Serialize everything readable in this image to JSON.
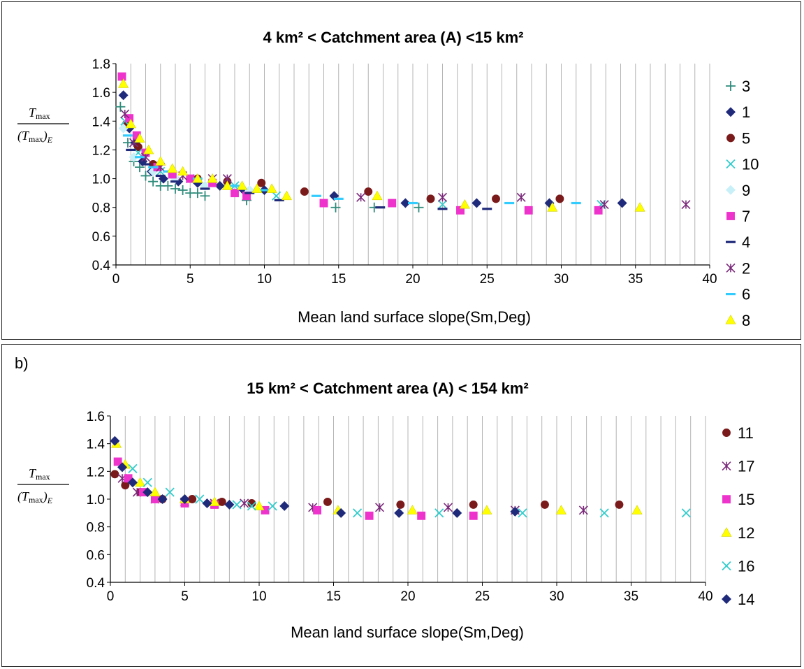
{
  "chart_data": [
    {
      "type": "scatter",
      "title": "4 km² < Catchment area (A) <15 km²",
      "xlabel": "Mean land surface slope(Sm,Deg)",
      "ylabel": "Tmax / (Tmax)E",
      "ylabel_num": "T",
      "ylabel_num_sub": "max",
      "ylabel_den_open": "(T",
      "ylabel_den_sub": "max",
      "ylabel_den_close": ")",
      "ylabel_den_sub2": "E",
      "xlim": [
        0,
        40
      ],
      "ylim": [
        0.4,
        1.8
      ],
      "xticks": [
        "0",
        "5",
        "10",
        "15",
        "20",
        "25",
        "30",
        "35",
        "40"
      ],
      "yticks": [
        "0.4",
        "0.6",
        "0.8",
        "1.0",
        "1.2",
        "1.4",
        "1.6",
        "1.8"
      ],
      "grid": "vertical",
      "legend_position": "right",
      "series": [
        {
          "name": "3",
          "marker": "plus",
          "color": "#2E8B7A",
          "points": [
            [
              0.3,
              1.5
            ],
            [
              0.8,
              1.25
            ],
            [
              1.2,
              1.12
            ],
            [
              1.6,
              1.08
            ],
            [
              2.0,
              1.02
            ],
            [
              2.5,
              0.98
            ],
            [
              3.0,
              0.95
            ],
            [
              3.5,
              0.95
            ],
            [
              4.0,
              0.93
            ],
            [
              4.5,
              0.92
            ],
            [
              5.0,
              0.9
            ],
            [
              5.5,
              0.9
            ],
            [
              6.0,
              0.88
            ],
            [
              8.8,
              0.85
            ],
            [
              14.8,
              0.8
            ],
            [
              17.4,
              0.8
            ],
            [
              20.4,
              0.8
            ]
          ]
        },
        {
          "name": "1",
          "marker": "diamond",
          "color": "#1F2A7A",
          "points": [
            [
              0.5,
              1.58
            ],
            [
              0.9,
              1.35
            ],
            [
              1.3,
              1.25
            ],
            [
              1.8,
              1.12
            ],
            [
              2.4,
              1.05
            ],
            [
              3.2,
              1.0
            ],
            [
              4.2,
              0.98
            ],
            [
              5.5,
              0.97
            ],
            [
              7.0,
              0.95
            ],
            [
              8.5,
              0.93
            ],
            [
              10.0,
              0.92
            ],
            [
              14.7,
              0.88
            ],
            [
              19.5,
              0.83
            ],
            [
              24.3,
              0.83
            ],
            [
              29.2,
              0.83
            ],
            [
              34.1,
              0.83
            ]
          ]
        },
        {
          "name": "5",
          "marker": "circle",
          "color": "#7A1A1A",
          "points": [
            [
              0.7,
              1.38
            ],
            [
              1.5,
              1.22
            ],
            [
              2.5,
              1.1
            ],
            [
              3.8,
              1.03
            ],
            [
              5.5,
              1.0
            ],
            [
              7.5,
              0.98
            ],
            [
              9.8,
              0.97
            ],
            [
              12.7,
              0.91
            ],
            [
              17.0,
              0.91
            ],
            [
              21.2,
              0.86
            ],
            [
              25.6,
              0.86
            ],
            [
              29.9,
              0.86
            ]
          ]
        },
        {
          "name": "10",
          "marker": "x",
          "color": "#33CCCC",
          "points": [
            [
              0.6,
              1.4
            ],
            [
              1.5,
              1.18
            ],
            [
              3.0,
              1.05
            ],
            [
              5.0,
              1.0
            ],
            [
              8.0,
              0.95
            ],
            [
              10.8,
              0.88
            ],
            [
              22.0,
              0.82
            ],
            [
              32.7,
              0.82
            ]
          ]
        },
        {
          "name": "9",
          "marker": "diamond",
          "color": "#C8F0F8",
          "points": [
            [
              0.5,
              1.35
            ],
            [
              1.2,
              1.15
            ],
            [
              2.5,
              1.05
            ],
            [
              4.0,
              1.0
            ],
            [
              6.0,
              0.95
            ],
            [
              9.0,
              0.92
            ]
          ]
        },
        {
          "name": "7",
          "marker": "square",
          "color": "#EE33CC",
          "points": [
            [
              0.4,
              1.71
            ],
            [
              0.9,
              1.42
            ],
            [
              1.4,
              1.3
            ],
            [
              2.0,
              1.18
            ],
            [
              2.8,
              1.08
            ],
            [
              3.8,
              1.03
            ],
            [
              5.0,
              1.0
            ],
            [
              6.5,
              0.97
            ],
            [
              8.0,
              0.9
            ],
            [
              8.8,
              0.88
            ],
            [
              14.0,
              0.83
            ],
            [
              18.6,
              0.83
            ],
            [
              23.2,
              0.78
            ],
            [
              27.8,
              0.78
            ],
            [
              32.5,
              0.78
            ]
          ]
        },
        {
          "name": "4",
          "marker": "dash",
          "color": "#1F2A7A",
          "points": [
            [
              1.0,
              1.2
            ],
            [
              2.0,
              1.1
            ],
            [
              3.0,
              1.02
            ],
            [
              4.0,
              0.98
            ],
            [
              6.0,
              0.93
            ],
            [
              9.0,
              0.9
            ],
            [
              11.0,
              0.85
            ],
            [
              17.8,
              0.8
            ],
            [
              22.0,
              0.79
            ],
            [
              25.0,
              0.79
            ]
          ]
        },
        {
          "name": "2",
          "marker": "star",
          "color": "#7A2A7A",
          "points": [
            [
              0.6,
              1.45
            ],
            [
              1.2,
              1.25
            ],
            [
              2.0,
              1.15
            ],
            [
              3.0,
              1.08
            ],
            [
              4.5,
              1.02
            ],
            [
              6.5,
              1.0
            ],
            [
              7.5,
              1.0
            ],
            [
              16.5,
              0.87
            ],
            [
              22.0,
              0.87
            ],
            [
              27.3,
              0.87
            ],
            [
              32.9,
              0.82
            ],
            [
              38.4,
              0.82
            ]
          ]
        },
        {
          "name": "6",
          "marker": "dash",
          "color": "#33CCFF",
          "points": [
            [
              0.8,
              1.3
            ],
            [
              1.6,
              1.15
            ],
            [
              2.5,
              1.08
            ],
            [
              3.5,
              1.05
            ],
            [
              5.5,
              1.0
            ],
            [
              8.0,
              0.95
            ],
            [
              10.0,
              0.92
            ],
            [
              13.5,
              0.88
            ],
            [
              15.0,
              0.86
            ],
            [
              20.0,
              0.83
            ],
            [
              26.5,
              0.83
            ],
            [
              31.0,
              0.83
            ]
          ]
        },
        {
          "name": "8",
          "marker": "triangle",
          "color": "#FFFF00",
          "points": [
            [
              0.5,
              1.66
            ],
            [
              1.0,
              1.38
            ],
            [
              1.6,
              1.28
            ],
            [
              2.2,
              1.2
            ],
            [
              3.0,
              1.12
            ],
            [
              3.8,
              1.07
            ],
            [
              4.5,
              1.05
            ],
            [
              5.5,
              1.0
            ],
            [
              6.5,
              1.0
            ],
            [
              7.5,
              0.95
            ],
            [
              8.5,
              0.95
            ],
            [
              9.5,
              0.93
            ],
            [
              10.5,
              0.93
            ],
            [
              11.5,
              0.88
            ],
            [
              17.6,
              0.88
            ],
            [
              23.5,
              0.82
            ],
            [
              29.4,
              0.8
            ],
            [
              35.3,
              0.8
            ]
          ]
        }
      ]
    },
    {
      "type": "scatter",
      "panel_label": "b)",
      "title": "15 km² < Catchment area (A) < 154 km²",
      "xlabel": "Mean land surface slope(Sm,Deg)",
      "ylabel": "Tmax / (Tmax)E",
      "ylabel_num": "T",
      "ylabel_num_sub": "max",
      "ylabel_den_open": "(T",
      "ylabel_den_sub": "max",
      "ylabel_den_close": ")",
      "ylabel_den_sub2": "E",
      "xlim": [
        0,
        40
      ],
      "ylim": [
        0.4,
        1.6
      ],
      "xticks": [
        "0",
        "5",
        "10",
        "15",
        "20",
        "25",
        "30",
        "35",
        "40"
      ],
      "yticks": [
        "0.4",
        "0.6",
        "0.8",
        "1.0",
        "1.2",
        "1.4",
        "1.6"
      ],
      "grid": "vertical",
      "legend_position": "right",
      "series": [
        {
          "name": "11",
          "marker": "circle",
          "color": "#7A1A1A",
          "points": [
            [
              0.3,
              1.18
            ],
            [
              1.0,
              1.1
            ],
            [
              2.0,
              1.05
            ],
            [
              3.5,
              1.0
            ],
            [
              5.5,
              1.0
            ],
            [
              7.5,
              0.98
            ],
            [
              9.5,
              0.97
            ],
            [
              14.6,
              0.98
            ],
            [
              19.5,
              0.96
            ],
            [
              24.4,
              0.96
            ],
            [
              29.2,
              0.96
            ],
            [
              34.2,
              0.96
            ]
          ]
        },
        {
          "name": "17",
          "marker": "star",
          "color": "#7A2A7A",
          "points": [
            [
              0.8,
              1.15
            ],
            [
              1.8,
              1.05
            ],
            [
              3.0,
              1.0
            ],
            [
              5.0,
              0.98
            ],
            [
              7.0,
              0.97
            ],
            [
              9.0,
              0.97
            ],
            [
              13.6,
              0.94
            ],
            [
              18.1,
              0.94
            ],
            [
              22.7,
              0.94
            ],
            [
              27.2,
              0.92
            ],
            [
              31.8,
              0.92
            ]
          ]
        },
        {
          "name": "15",
          "marker": "square",
          "color": "#EE33CC",
          "points": [
            [
              0.5,
              1.27
            ],
            [
              1.2,
              1.15
            ],
            [
              2.2,
              1.05
            ],
            [
              3.0,
              1.0
            ],
            [
              5.0,
              0.97
            ],
            [
              7.0,
              0.96
            ],
            [
              10.4,
              0.92
            ],
            [
              13.9,
              0.92
            ],
            [
              17.4,
              0.88
            ],
            [
              20.9,
              0.88
            ],
            [
              24.4,
              0.88
            ]
          ]
        },
        {
          "name": "12",
          "marker": "triangle",
          "color": "#FFFF00",
          "points": [
            [
              0.4,
              1.4
            ],
            [
              1.0,
              1.25
            ],
            [
              2.0,
              1.12
            ],
            [
              3.0,
              1.05
            ],
            [
              5.0,
              1.0
            ],
            [
              7.0,
              0.98
            ],
            [
              10.0,
              0.95
            ],
            [
              15.3,
              0.92
            ],
            [
              20.3,
              0.92
            ],
            [
              25.3,
              0.92
            ],
            [
              30.3,
              0.92
            ],
            [
              35.4,
              0.92
            ]
          ]
        },
        {
          "name": "16",
          "marker": "x",
          "color": "#33CCCC",
          "points": [
            [
              1.5,
              1.22
            ],
            [
              2.5,
              1.12
            ],
            [
              4.0,
              1.05
            ],
            [
              6.0,
              1.0
            ],
            [
              8.5,
              0.96
            ],
            [
              9.5,
              0.95
            ],
            [
              10.9,
              0.95
            ],
            [
              16.6,
              0.9
            ],
            [
              22.1,
              0.9
            ],
            [
              27.7,
              0.9
            ],
            [
              33.2,
              0.9
            ],
            [
              38.7,
              0.9
            ]
          ]
        },
        {
          "name": "14",
          "marker": "diamond",
          "color": "#1F2A7A",
          "points": [
            [
              0.3,
              1.42
            ],
            [
              0.8,
              1.23
            ],
            [
              1.5,
              1.12
            ],
            [
              2.5,
              1.05
            ],
            [
              3.5,
              1.0
            ],
            [
              5.0,
              1.0
            ],
            [
              6.5,
              0.97
            ],
            [
              8.0,
              0.96
            ],
            [
              11.7,
              0.95
            ],
            [
              15.5,
              0.9
            ],
            [
              19.4,
              0.9
            ],
            [
              23.3,
              0.9
            ],
            [
              27.2,
              0.91
            ]
          ]
        }
      ]
    }
  ]
}
